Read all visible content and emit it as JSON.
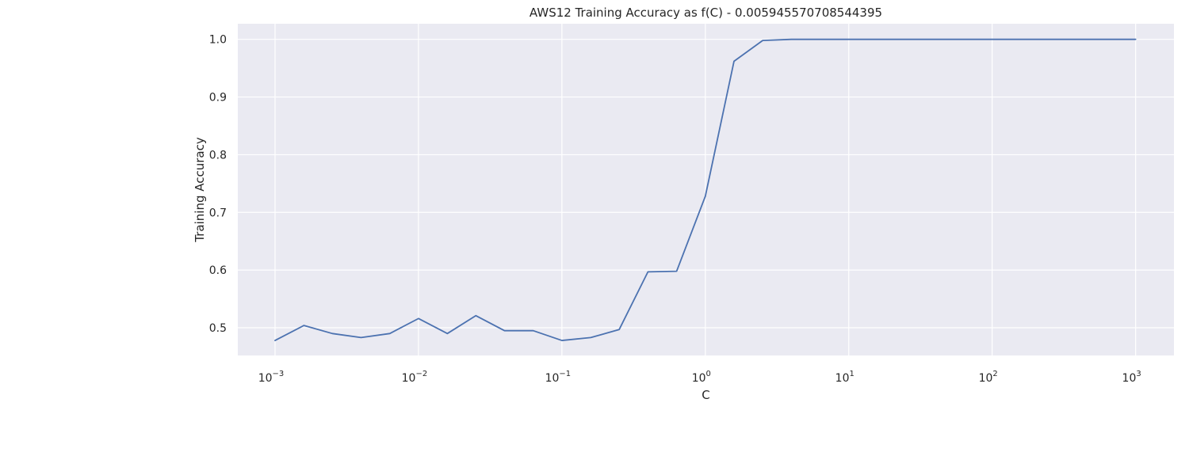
{
  "chart_data": {
    "type": "line",
    "title": "AWS12 Training Accuracy as f(C) - 0.005945570708544395",
    "xlabel": "C",
    "ylabel": "Training Accuracy",
    "x_scale": "log",
    "xlim": [
      0.00055,
      1850
    ],
    "ylim": [
      0.452,
      1.027
    ],
    "x_ticks": [
      {
        "value": 0.001,
        "base": "10",
        "exp": "−3"
      },
      {
        "value": 0.01,
        "base": "10",
        "exp": "−2"
      },
      {
        "value": 0.1,
        "base": "10",
        "exp": "−1"
      },
      {
        "value": 1,
        "base": "10",
        "exp": "0"
      },
      {
        "value": 10,
        "base": "10",
        "exp": "1"
      },
      {
        "value": 100,
        "base": "10",
        "exp": "2"
      },
      {
        "value": 1000,
        "base": "10",
        "exp": "3"
      }
    ],
    "y_ticks": [
      {
        "value": 0.5,
        "label": "0.5"
      },
      {
        "value": 0.6,
        "label": "0.6"
      },
      {
        "value": 0.7,
        "label": "0.7"
      },
      {
        "value": 0.8,
        "label": "0.8"
      },
      {
        "value": 0.9,
        "label": "0.9"
      },
      {
        "value": 1.0,
        "label": "1.0"
      }
    ],
    "grid": true,
    "colors": {
      "background": "#eaeaf2",
      "grid": "#ffffff",
      "line": "#4c72b0",
      "text": "#262626"
    },
    "series": [
      {
        "x": [
          0.001,
          0.00159,
          0.00251,
          0.00398,
          0.00631,
          0.01,
          0.0159,
          0.0251,
          0.0398,
          0.0631,
          0.1,
          0.159,
          0.251,
          0.398,
          0.631,
          1.0,
          1.585,
          2.512,
          3.981,
          6.31,
          10,
          15.85,
          25.12,
          39.81,
          63.1,
          100,
          158.5,
          251.2,
          398.1,
          631,
          1000
        ],
        "y": [
          0.478,
          0.504,
          0.49,
          0.483,
          0.49,
          0.516,
          0.49,
          0.521,
          0.495,
          0.495,
          0.478,
          0.483,
          0.497,
          0.597,
          0.598,
          0.728,
          0.962,
          0.998,
          1.0,
          1.0,
          1.0,
          1.0,
          1.0,
          1.0,
          1.0,
          1.0,
          1.0,
          1.0,
          1.0,
          1.0,
          1.0
        ]
      }
    ]
  }
}
